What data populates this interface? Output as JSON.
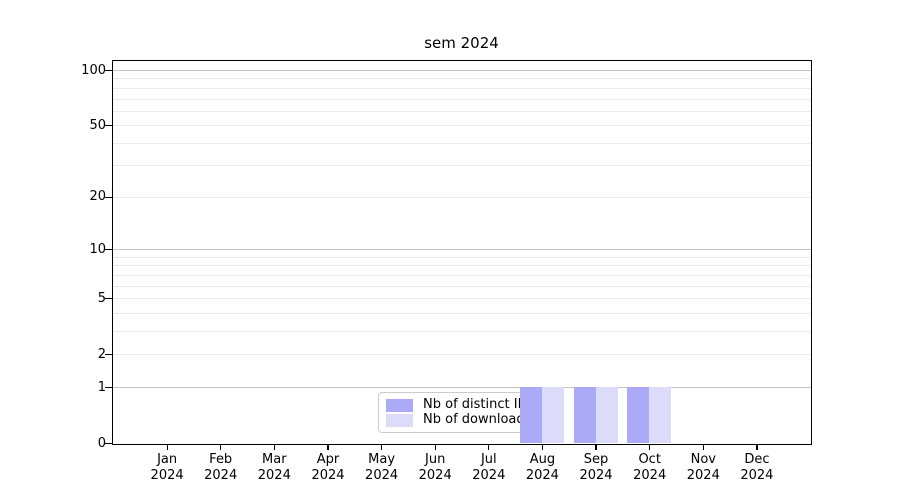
{
  "chart_data": {
    "type": "bar",
    "title": "sem 2024",
    "categories": [
      "Jan 2024",
      "Feb 2024",
      "Mar 2024",
      "Apr 2024",
      "May 2024",
      "Jun 2024",
      "Jul 2024",
      "Aug 2024",
      "Sep 2024",
      "Oct 2024",
      "Nov 2024",
      "Dec 2024"
    ],
    "series": [
      {
        "name": "Nb of distinct IPs",
        "color": "#aaaaf7",
        "values": [
          0,
          0,
          0,
          0,
          0,
          0,
          0,
          1,
          1,
          1,
          0,
          0
        ]
      },
      {
        "name": "Nb of downloads",
        "color": "#dcdcfa",
        "values": [
          0,
          0,
          0,
          0,
          0,
          0,
          0,
          1,
          1,
          1,
          0,
          0
        ]
      }
    ],
    "xlabel": "",
    "ylabel": "",
    "yscale": "log10(1+value)",
    "ylim": [
      0,
      100
    ],
    "grid": "on",
    "legend_position": "inside-bottom-center"
  },
  "axes": {
    "y_tick_values": [
      0,
      1,
      2,
      5,
      10,
      20,
      50,
      100
    ],
    "y_tick_labels": [
      "0",
      "1",
      "2",
      "5",
      "10",
      "20",
      "50",
      "100"
    ],
    "y_major_gridlines": [
      1,
      10,
      100
    ],
    "y_minor_gridlines": [
      2,
      3,
      4,
      5,
      6,
      7,
      8,
      9,
      20,
      30,
      40,
      50,
      60,
      70,
      80,
      90
    ],
    "x_ticks": [
      {
        "month": "Jan",
        "year": "2024"
      },
      {
        "month": "Feb",
        "year": "2024"
      },
      {
        "month": "Mar",
        "year": "2024"
      },
      {
        "month": "Apr",
        "year": "2024"
      },
      {
        "month": "May",
        "year": "2024"
      },
      {
        "month": "Jun",
        "year": "2024"
      },
      {
        "month": "Jul",
        "year": "2024"
      },
      {
        "month": "Aug",
        "year": "2024"
      },
      {
        "month": "Sep",
        "year": "2024"
      },
      {
        "month": "Oct",
        "year": "2024"
      },
      {
        "month": "Nov",
        "year": "2024"
      },
      {
        "month": "Dec",
        "year": "2024"
      }
    ]
  },
  "legend": {
    "items": [
      {
        "label": "Nb of distinct IPs",
        "color": "#aaaaf7"
      },
      {
        "label": "Nb of downloads",
        "color": "#dcdcfa"
      }
    ]
  },
  "colors": {
    "background": "#ffffff",
    "spine": "#000000",
    "major_grid": "#c3c3c3",
    "minor_grid": "#eaeaea",
    "bar_ips": "#aaaaf7",
    "bar_downloads": "#dcdcfa",
    "legend_border": "#cccccc"
  }
}
